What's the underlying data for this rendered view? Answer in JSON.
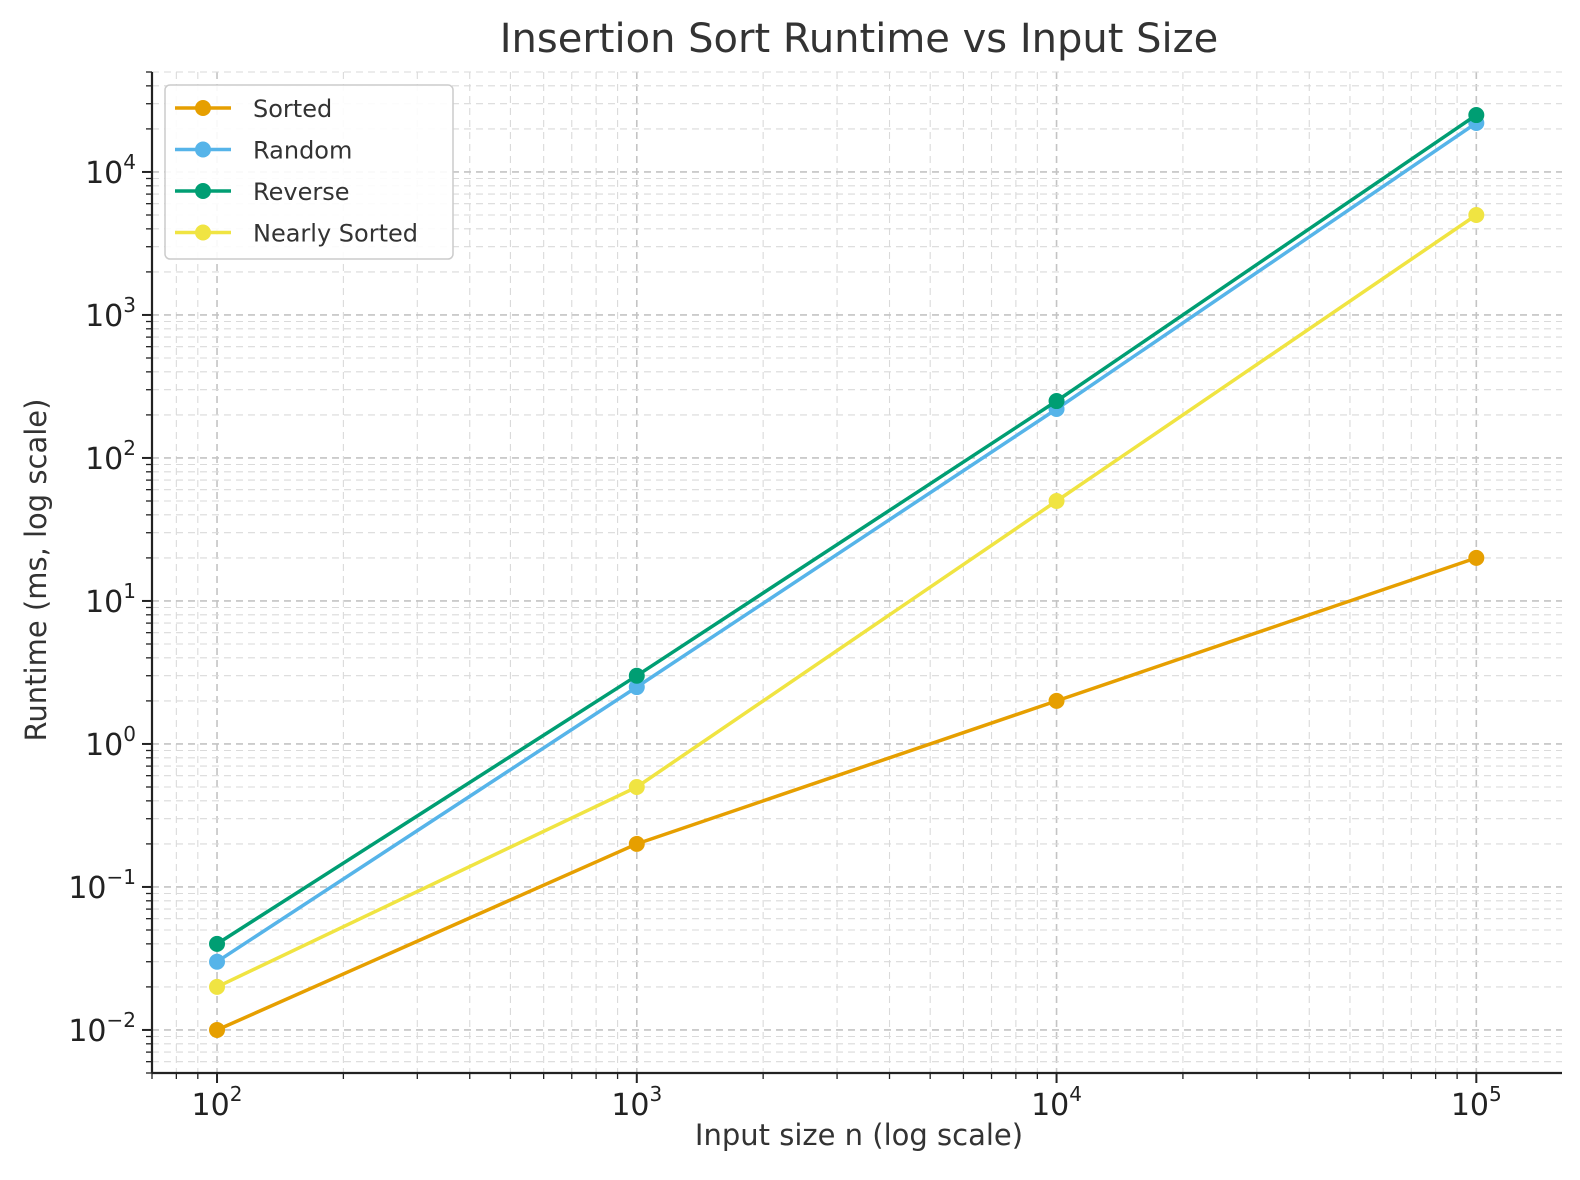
{
  "chart_data": {
    "type": "line",
    "title": "Insertion Sort Runtime vs Input Size",
    "xlabel": "Input size n (log scale)",
    "ylabel": "Runtime (ms, log scale)",
    "xscale": "log",
    "yscale": "log",
    "xlim": [
      70,
      160000
    ],
    "ylim": [
      0.005,
      50000
    ],
    "x": [
      100,
      1000,
      10000,
      100000
    ],
    "xticks": [
      {
        "value": 100,
        "base": "10",
        "exp": "2"
      },
      {
        "value": 1000,
        "base": "10",
        "exp": "3"
      },
      {
        "value": 10000,
        "base": "10",
        "exp": "4"
      },
      {
        "value": 100000,
        "base": "10",
        "exp": "5"
      }
    ],
    "yticks": [
      {
        "value": 0.01,
        "base": "10",
        "exp": "−2"
      },
      {
        "value": 0.1,
        "base": "10",
        "exp": "−1"
      },
      {
        "value": 1,
        "base": "10",
        "exp": "0"
      },
      {
        "value": 10,
        "base": "10",
        "exp": "1"
      },
      {
        "value": 100,
        "base": "10",
        "exp": "2"
      },
      {
        "value": 1000,
        "base": "10",
        "exp": "3"
      },
      {
        "value": 10000,
        "base": "10",
        "exp": "4"
      }
    ],
    "grid": true,
    "legend_position": "top-left",
    "series": [
      {
        "name": "Sorted",
        "color": "#E69F00",
        "values": [
          0.01,
          0.2,
          2,
          20
        ]
      },
      {
        "name": "Random",
        "color": "#56B4E9",
        "values": [
          0.03,
          2.5,
          220,
          22000
        ]
      },
      {
        "name": "Reverse",
        "color": "#009E73",
        "values": [
          0.04,
          3,
          250,
          25000
        ]
      },
      {
        "name": "Nearly Sorted",
        "color": "#F0E442",
        "values": [
          0.02,
          0.5,
          50,
          5000
        ]
      }
    ]
  }
}
